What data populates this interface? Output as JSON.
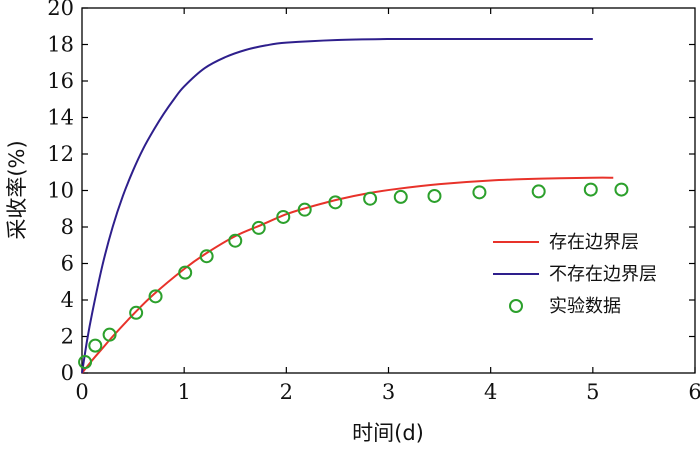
{
  "chart_data": {
    "type": "line",
    "xlabel": "时间(d)",
    "ylabel": "采收率(%)",
    "xlim": [
      0,
      6
    ],
    "ylim": [
      0,
      20
    ],
    "xticks": [
      "0",
      "1",
      "2",
      "3",
      "4",
      "5",
      "6"
    ],
    "yticks": [
      "0",
      "2",
      "4",
      "6",
      "8",
      "10",
      "12",
      "14",
      "16",
      "18",
      "20"
    ],
    "legend_position": "right",
    "grid": false,
    "series": [
      {
        "name": "存在边界层",
        "kind": "line",
        "color": "#e8322a",
        "x": [
          0,
          0.1,
          0.2,
          0.3,
          0.5,
          0.7,
          1.0,
          1.2,
          1.5,
          1.75,
          2.0,
          2.2,
          2.5,
          2.8,
          3.1,
          3.5,
          4.0,
          4.5,
          5.0,
          5.2
        ],
        "y": [
          0,
          0.7,
          1.35,
          2.0,
          3.2,
          4.3,
          5.7,
          6.5,
          7.5,
          8.1,
          8.7,
          9.05,
          9.5,
          9.85,
          10.1,
          10.35,
          10.55,
          10.65,
          10.7,
          10.7
        ]
      },
      {
        "name": "不存在边界层",
        "kind": "line",
        "color": "#2e1f8c",
        "x": [
          0,
          0.05,
          0.1,
          0.2,
          0.3,
          0.4,
          0.5,
          0.6,
          0.7,
          0.8,
          0.9,
          1.0,
          1.2,
          1.4,
          1.6,
          1.8,
          2.0,
          2.5,
          3.0,
          3.5,
          4.0,
          4.5,
          5.0
        ],
        "y": [
          0,
          1.8,
          3.3,
          5.9,
          8.0,
          9.7,
          11.1,
          12.3,
          13.3,
          14.2,
          15.0,
          15.7,
          16.7,
          17.3,
          17.7,
          17.95,
          18.1,
          18.25,
          18.3,
          18.3,
          18.3,
          18.3,
          18.3
        ]
      },
      {
        "name": "实验数据",
        "kind": "scatter",
        "color": "#2ca02c",
        "x": [
          0.03,
          0.13,
          0.27,
          0.53,
          0.72,
          1.01,
          1.22,
          1.5,
          1.73,
          1.97,
          2.18,
          2.48,
          2.82,
          3.12,
          3.45,
          3.89,
          4.47,
          4.98,
          5.28
        ],
        "y": [
          0.6,
          1.5,
          2.1,
          3.3,
          4.2,
          5.5,
          6.4,
          7.25,
          7.95,
          8.55,
          8.95,
          9.35,
          9.55,
          9.65,
          9.7,
          9.9,
          9.95,
          10.05,
          10.05
        ]
      }
    ]
  }
}
